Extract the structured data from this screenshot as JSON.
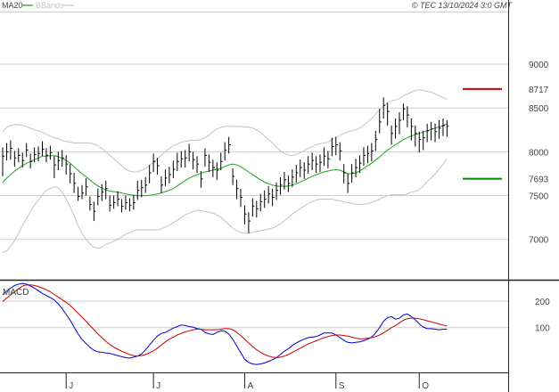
{
  "header": {
    "indicator_label": "MA20",
    "bands_label": "BBands",
    "copyright": "© TEC 13/10/2024 3:0 GMT"
  },
  "colors": {
    "background": "#ffffff",
    "grid": "#cfcfcf",
    "axis": "#222222",
    "bars": "#000000",
    "ma20": "#1fa01f",
    "bbands": "#c4c4c4",
    "resistance": "#cc0000",
    "support": "#008800",
    "macd": "#0000cc",
    "signal": "#cc0000"
  },
  "chart_data": [
    {
      "type": "ohlc",
      "title": "",
      "xlabel": "",
      "ylabel": "",
      "ylim": [
        6550,
        9600
      ],
      "y_ticks": [
        7000,
        7500,
        8000,
        8500,
        9000
      ],
      "y_tick_labels": [
        "7000",
        "7500",
        "8000",
        "8500",
        "9000"
      ],
      "x_ticks": [
        {
          "index": 16,
          "label": "J"
        },
        {
          "index": 38,
          "label": "J"
        },
        {
          "index": 61,
          "label": "A"
        },
        {
          "index": 84,
          "label": "S"
        },
        {
          "index": 105,
          "label": "O"
        }
      ],
      "grid": true,
      "closes": [
        7950,
        8000,
        8040,
        7930,
        7960,
        7900,
        8020,
        7890,
        7970,
        7980,
        8030,
        7960,
        7990,
        7850,
        7900,
        7930,
        7860,
        7750,
        7640,
        7490,
        7530,
        7600,
        7400,
        7320,
        7490,
        7540,
        7580,
        7390,
        7420,
        7460,
        7380,
        7420,
        7390,
        7420,
        7560,
        7590,
        7620,
        7760,
        7890,
        7840,
        7620,
        7700,
        7740,
        7800,
        7890,
        7920,
        7930,
        8000,
        7910,
        7860,
        7690,
        7960,
        7880,
        7820,
        7790,
        7890,
        8020,
        8080,
        7720,
        7580,
        7480,
        7290,
        7210,
        7380,
        7350,
        7430,
        7460,
        7520,
        7480,
        7560,
        7620,
        7680,
        7640,
        7710,
        7760,
        7820,
        7790,
        7860,
        7900,
        7860,
        7880,
        7950,
        7920,
        8060,
        8080,
        8010,
        7760,
        7640,
        7760,
        7820,
        7870,
        7960,
        7980,
        8010,
        8140,
        8340,
        8530,
        8460,
        8210,
        8290,
        8360,
        8490,
        8420,
        8290,
        8210,
        8140,
        8160,
        8240,
        8260,
        8230,
        8270,
        8300,
        8290
      ],
      "ranges": [
        [
          7720,
          8050
        ],
        [
          7900,
          8100
        ],
        [
          7910,
          8130
        ],
        [
          7830,
          8010
        ],
        [
          7880,
          8040
        ],
        [
          7820,
          7990
        ],
        [
          7940,
          8100
        ],
        [
          7810,
          7980
        ],
        [
          7880,
          8050
        ],
        [
          7890,
          8060
        ],
        [
          7950,
          8120
        ],
        [
          7880,
          8040
        ],
        [
          7910,
          8070
        ],
        [
          7700,
          7950
        ],
        [
          7790,
          8000
        ],
        [
          7830,
          8020
        ],
        [
          7740,
          7960
        ],
        [
          7640,
          7860
        ],
        [
          7530,
          7760
        ],
        [
          7440,
          7600
        ],
        [
          7460,
          7620
        ],
        [
          7500,
          7700
        ],
        [
          7330,
          7490
        ],
        [
          7210,
          7430
        ],
        [
          7390,
          7580
        ],
        [
          7440,
          7630
        ],
        [
          7460,
          7670
        ],
        [
          7320,
          7500
        ],
        [
          7350,
          7500
        ],
        [
          7380,
          7550
        ],
        [
          7310,
          7460
        ],
        [
          7340,
          7500
        ],
        [
          7320,
          7470
        ],
        [
          7340,
          7510
        ],
        [
          7450,
          7670
        ],
        [
          7480,
          7680
        ],
        [
          7530,
          7710
        ],
        [
          7640,
          7850
        ],
        [
          7770,
          7980
        ],
        [
          7740,
          7930
        ],
        [
          7530,
          7720
        ],
        [
          7610,
          7800
        ],
        [
          7640,
          7830
        ],
        [
          7700,
          7900
        ],
        [
          7780,
          7990
        ],
        [
          7820,
          8010
        ],
        [
          7820,
          8020
        ],
        [
          7890,
          8090
        ],
        [
          7800,
          8000
        ],
        [
          7760,
          7950
        ],
        [
          7590,
          7780
        ],
        [
          7830,
          8040
        ],
        [
          7770,
          7970
        ],
        [
          7710,
          7910
        ],
        [
          7680,
          7880
        ],
        [
          7790,
          7990
        ],
        [
          7900,
          8110
        ],
        [
          7980,
          8170
        ],
        [
          7620,
          7810
        ],
        [
          7460,
          7680
        ],
        [
          7370,
          7580
        ],
        [
          7170,
          7390
        ],
        [
          7070,
          7310
        ],
        [
          7260,
          7470
        ],
        [
          7250,
          7440
        ],
        [
          7320,
          7520
        ],
        [
          7360,
          7560
        ],
        [
          7410,
          7610
        ],
        [
          7380,
          7580
        ],
        [
          7450,
          7650
        ],
        [
          7510,
          7710
        ],
        [
          7570,
          7770
        ],
        [
          7540,
          7730
        ],
        [
          7600,
          7800
        ],
        [
          7650,
          7850
        ],
        [
          7710,
          7910
        ],
        [
          7690,
          7880
        ],
        [
          7750,
          7950
        ],
        [
          7790,
          7990
        ],
        [
          7760,
          7950
        ],
        [
          7770,
          7970
        ],
        [
          7840,
          8050
        ],
        [
          7810,
          8010
        ],
        [
          7950,
          8160
        ],
        [
          7960,
          8170
        ],
        [
          7900,
          8110
        ],
        [
          7640,
          7860
        ],
        [
          7530,
          7750
        ],
        [
          7650,
          7860
        ],
        [
          7710,
          7920
        ],
        [
          7760,
          7960
        ],
        [
          7840,
          8050
        ],
        [
          7870,
          8070
        ],
        [
          7890,
          8100
        ],
        [
          8010,
          8240
        ],
        [
          8210,
          8490
        ],
        [
          8380,
          8620
        ],
        [
          8300,
          8560
        ],
        [
          8080,
          8300
        ],
        [
          8150,
          8380
        ],
        [
          8200,
          8450
        ],
        [
          8360,
          8550
        ],
        [
          8280,
          8520
        ],
        [
          8130,
          8380
        ],
        [
          8060,
          8300
        ],
        [
          7990,
          8230
        ],
        [
          8020,
          8240
        ],
        [
          8110,
          8320
        ],
        [
          8130,
          8340
        ],
        [
          8110,
          8320
        ],
        [
          8150,
          8360
        ],
        [
          8180,
          8380
        ],
        [
          8170,
          8360
        ]
      ],
      "series": [
        {
          "name": "MA20",
          "values": [
            7650,
            7700,
            7740,
            7780,
            7810,
            7840,
            7870,
            7890,
            7910,
            7930,
            7950,
            7950,
            7955,
            7955,
            7945,
            7925,
            7900,
            7870,
            7830,
            7790,
            7750,
            7715,
            7680,
            7640,
            7610,
            7585,
            7565,
            7550,
            7545,
            7540,
            7530,
            7520,
            7510,
            7505,
            7500,
            7500,
            7500,
            7505,
            7510,
            7520,
            7530,
            7545,
            7560,
            7580,
            7610,
            7640,
            7670,
            7700,
            7720,
            7740,
            7755,
            7770,
            7780,
            7790,
            7800,
            7810,
            7830,
            7850,
            7860,
            7850,
            7830,
            7800,
            7770,
            7740,
            7710,
            7680,
            7655,
            7635,
            7620,
            7610,
            7605,
            7605,
            7610,
            7620,
            7635,
            7655,
            7675,
            7700,
            7720,
            7740,
            7755,
            7770,
            7780,
            7790,
            7795,
            7790,
            7770,
            7750,
            7750,
            7760,
            7780,
            7810,
            7840,
            7870,
            7905,
            7940,
            7980,
            8020,
            8050,
            8080,
            8110,
            8140,
            8160,
            8180,
            8195,
            8210,
            8225,
            8240,
            8255,
            8270,
            8285,
            8300,
            8320
          ]
        },
        {
          "name": "BBands upper",
          "values": [
            8230,
            8280,
            8300,
            8310,
            8310,
            8300,
            8290,
            8270,
            8250,
            8240,
            8220,
            8200,
            8180,
            8160,
            8150,
            8130,
            8120,
            8110,
            8100,
            8100,
            8100,
            8100,
            8100,
            8090,
            8070,
            8040,
            8000,
            7960,
            7920,
            7880,
            7840,
            7800,
            7780,
            7770,
            7770,
            7790,
            7810,
            7840,
            7880,
            7920,
            7960,
            8000,
            8040,
            8070,
            8090,
            8110,
            8120,
            8130,
            8130,
            8130,
            8140,
            8160,
            8190,
            8230,
            8260,
            8280,
            8290,
            8290,
            8290,
            8290,
            8290,
            8280,
            8280,
            8270,
            8250,
            8220,
            8180,
            8140,
            8100,
            8050,
            8010,
            7980,
            7960,
            7960,
            7970,
            7990,
            8010,
            8040,
            8060,
            8080,
            8090,
            8100,
            8110,
            8140,
            8160,
            8190,
            8210,
            8230,
            8240,
            8250,
            8270,
            8300,
            8340,
            8380,
            8430,
            8480,
            8520,
            8560,
            8580,
            8590,
            8610,
            8640,
            8660,
            8680,
            8700,
            8710,
            8700,
            8690,
            8680,
            8660,
            8640,
            8620,
            8600
          ]
        },
        {
          "name": "BBands lower",
          "values": [
            6850,
            6870,
            6920,
            6990,
            7070,
            7160,
            7240,
            7320,
            7390,
            7450,
            7510,
            7560,
            7580,
            7600,
            7590,
            7540,
            7460,
            7370,
            7270,
            7160,
            7070,
            7000,
            6950,
            6910,
            6900,
            6910,
            6940,
            6960,
            6980,
            7000,
            7030,
            7060,
            7080,
            7100,
            7110,
            7110,
            7110,
            7110,
            7110,
            7110,
            7120,
            7140,
            7160,
            7190,
            7220,
            7250,
            7280,
            7300,
            7320,
            7330,
            7330,
            7320,
            7310,
            7300,
            7280,
            7250,
            7210,
            7170,
            7130,
            7100,
            7080,
            7070,
            7070,
            7080,
            7090,
            7100,
            7110,
            7120,
            7130,
            7150,
            7180,
            7210,
            7250,
            7290,
            7320,
            7350,
            7380,
            7410,
            7430,
            7450,
            7460,
            7460,
            7460,
            7460,
            7450,
            7440,
            7430,
            7420,
            7410,
            7400,
            7400,
            7400,
            7410,
            7420,
            7440,
            7460,
            7480,
            7500,
            7510,
            7510,
            7510,
            7510,
            7520,
            7540,
            7550,
            7570,
            7610,
            7660,
            7700,
            7750,
            7800,
            7860,
            7920
          ]
        }
      ],
      "annotations": [
        {
          "type": "hline",
          "value": 8717,
          "label": "8717",
          "color": "#cc0000"
        },
        {
          "type": "hline",
          "value": 7693,
          "label": "7693",
          "color": "#008800"
        }
      ]
    },
    {
      "type": "line",
      "title": "",
      "legend_label": "MACD",
      "ylim": [
        -70,
        275
      ],
      "y_ticks": [
        100,
        200
      ],
      "y_tick_labels": [
        "100",
        "200"
      ],
      "grid": true,
      "series": [
        {
          "name": "MACD",
          "values": [
            225,
            238,
            250,
            260,
            265,
            268,
            265,
            258,
            250,
            240,
            230,
            222,
            214,
            205,
            190,
            172,
            150,
            128,
            102,
            76,
            55,
            40,
            25,
            14,
            8,
            6,
            4,
            2,
            -2,
            -6,
            -10,
            -14,
            -16,
            -12,
            -8,
            0,
            16,
            34,
            52,
            68,
            78,
            82,
            90,
            98,
            104,
            110,
            108,
            104,
            102,
            96,
            94,
            82,
            76,
            74,
            82,
            88,
            86,
            76,
            55,
            30,
            5,
            -20,
            -32,
            -38,
            -40,
            -38,
            -34,
            -28,
            -22,
            -14,
            -2,
            10,
            20,
            32,
            42,
            50,
            56,
            62,
            64,
            66,
            72,
            80,
            80,
            80,
            72,
            62,
            52,
            44,
            42,
            44,
            46,
            50,
            56,
            64,
            80,
            100,
            124,
            138,
            142,
            132,
            136,
            148,
            152,
            142,
            130,
            114,
            102,
            96,
            96,
            94,
            92,
            94,
            94
          ]
        },
        {
          "name": "Signal",
          "values": [
            200,
            212,
            224,
            236,
            248,
            258,
            262,
            262,
            260,
            256,
            250,
            244,
            236,
            226,
            216,
            206,
            196,
            184,
            170,
            155,
            140,
            124,
            108,
            92,
            76,
            62,
            48,
            36,
            26,
            18,
            10,
            4,
            -2,
            -6,
            -8,
            -6,
            -2,
            4,
            12,
            22,
            34,
            46,
            56,
            64,
            72,
            78,
            84,
            88,
            92,
            94,
            94,
            92,
            92,
            92,
            92,
            94,
            96,
            96,
            92,
            82,
            70,
            56,
            42,
            28,
            16,
            6,
            -2,
            -8,
            -12,
            -14,
            -12,
            -8,
            -2,
            6,
            14,
            22,
            30,
            38,
            44,
            50,
            56,
            62,
            66,
            70,
            72,
            72,
            70,
            68,
            64,
            60,
            58,
            58,
            60,
            62,
            66,
            72,
            80,
            90,
            100,
            108,
            118,
            128,
            134,
            136,
            136,
            134,
            130,
            126,
            122,
            118,
            114,
            110,
            106
          ]
        }
      ]
    }
  ]
}
